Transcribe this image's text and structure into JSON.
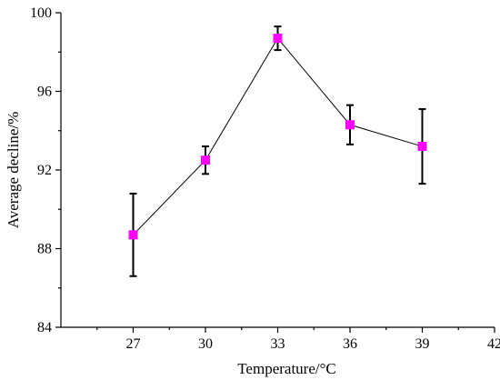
{
  "chart_data": {
    "type": "line",
    "title": "",
    "xlabel": "Temperature/°C",
    "ylabel": "Average decline/%",
    "xlim": [
      24,
      42
    ],
    "ylim": [
      84,
      100
    ],
    "x_ticks": [
      27,
      30,
      33,
      36,
      39,
      42
    ],
    "y_ticks": [
      84,
      88,
      92,
      96,
      100
    ],
    "grid": false,
    "legend": "none",
    "marker": "square",
    "colors": {
      "marker": "#ff00ff",
      "line": "#000000",
      "error_bar": "#000000"
    },
    "series": [
      {
        "x": [
          27,
          30,
          33,
          36,
          39
        ],
        "values": [
          88.7,
          92.5,
          98.7,
          94.3,
          93.2
        ],
        "error": [
          2.1,
          0.7,
          0.6,
          1.0,
          1.9
        ]
      }
    ]
  }
}
